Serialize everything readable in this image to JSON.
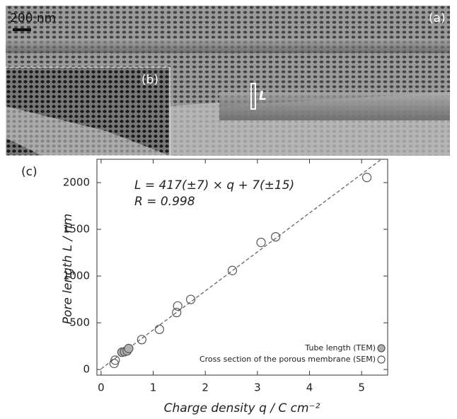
{
  "figure": {
    "scale_bar": "200 nm",
    "panel_a": "(a)",
    "panel_b": "(b)",
    "length_marker": "L"
  },
  "chart_data": {
    "type": "scatter",
    "panel_label": "(c)",
    "annotations": [
      "L = 417(±7) × q + 7(±15)",
      "R = 0.998"
    ],
    "x_label": "Charge density q / C cm⁻²",
    "y_label": "Pore length L / nm",
    "xlim": [
      -0.08,
      5.5
    ],
    "ylim": [
      -60,
      2250
    ],
    "xticks": [
      0,
      1,
      2,
      3,
      4,
      5
    ],
    "yticks": [
      0,
      500,
      1000,
      1500,
      2000
    ],
    "legend": "bottom-right",
    "series": [
      {
        "name": "Tube length (TEM)",
        "color": "#555555",
        "fill": "#b0b0b0",
        "x": [
          0.4,
          0.45,
          0.5,
          0.53
        ],
        "values": [
          185,
          190,
          200,
          225
        ]
      },
      {
        "name": "Cross section of the porous membrane (SEM)",
        "color": "#555555",
        "fill": "none",
        "x": [
          0.25,
          0.27,
          0.78,
          1.12,
          1.45,
          1.47,
          1.72,
          2.52,
          3.07,
          3.35,
          5.1
        ],
        "values": [
          65,
          100,
          320,
          430,
          610,
          680,
          750,
          1060,
          1360,
          1420,
          2055
        ]
      }
    ],
    "trend_line": {
      "color": "#666666",
      "x": [
        0,
        5.38
      ],
      "values": [
        7,
        2250
      ]
    }
  }
}
